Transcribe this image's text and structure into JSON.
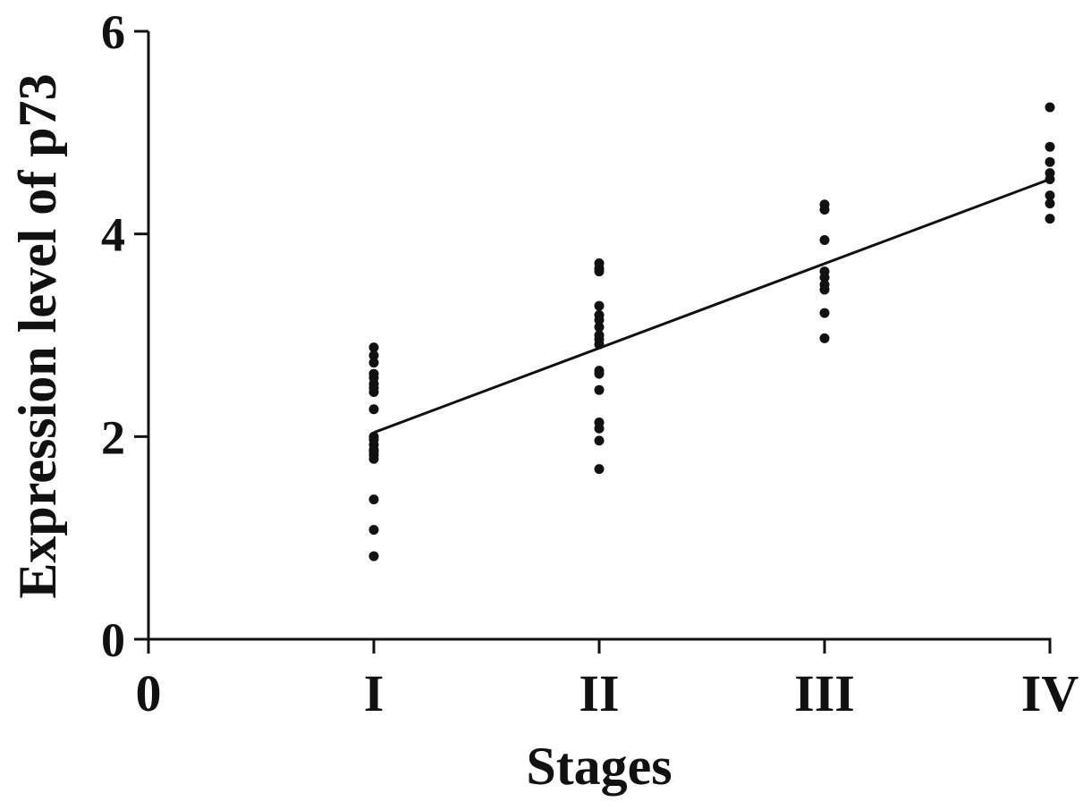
{
  "chart_data": {
    "type": "scatter",
    "title": "",
    "xlabel": "Stages",
    "ylabel": "Expression level of p73",
    "xlim": [
      0,
      4
    ],
    "ylim": [
      0,
      6
    ],
    "x_ticks": [
      0,
      1,
      2,
      3,
      4
    ],
    "x_tick_labels": [
      "0",
      "I",
      "II",
      "III",
      "IV"
    ],
    "y_ticks": [
      0,
      2,
      4,
      6
    ],
    "y_tick_labels": [
      "0",
      "2",
      "4",
      "6"
    ],
    "grid": false,
    "legend": "none",
    "point_color": "#111111",
    "line_color": "#111111",
    "series": [
      {
        "x": [
          1,
          1,
          1,
          1,
          1,
          1,
          1,
          1,
          1,
          1,
          1,
          1,
          1,
          1,
          1,
          1,
          1,
          1,
          1,
          2,
          2,
          2,
          2,
          2,
          2,
          2,
          2,
          2,
          2,
          2,
          2,
          2,
          2,
          2,
          2,
          2,
          3,
          3,
          3,
          3,
          3,
          3,
          3,
          3,
          3,
          4,
          4,
          4,
          4,
          4,
          4,
          4,
          4
        ],
        "y": [
          2.88,
          2.8,
          2.73,
          2.62,
          2.52,
          2.44,
          2.27,
          1.97,
          1.92,
          1.87,
          1.82,
          1.78,
          1.38,
          1.08,
          0.82,
          2.58,
          2.48,
          2.0,
          1.85,
          3.71,
          3.66,
          3.63,
          3.29,
          3.2,
          3.15,
          3.08,
          2.96,
          2.91,
          2.65,
          2.62,
          2.46,
          2.14,
          2.08,
          1.96,
          1.68,
          3.0,
          4.29,
          4.24,
          3.94,
          3.63,
          3.57,
          3.5,
          3.45,
          3.22,
          2.97,
          5.25,
          4.86,
          4.71,
          4.6,
          4.54,
          4.38,
          4.3,
          4.15
        ]
      }
    ],
    "trendline": {
      "x": [
        1,
        4
      ],
      "y": [
        2.04,
        4.54
      ]
    }
  }
}
